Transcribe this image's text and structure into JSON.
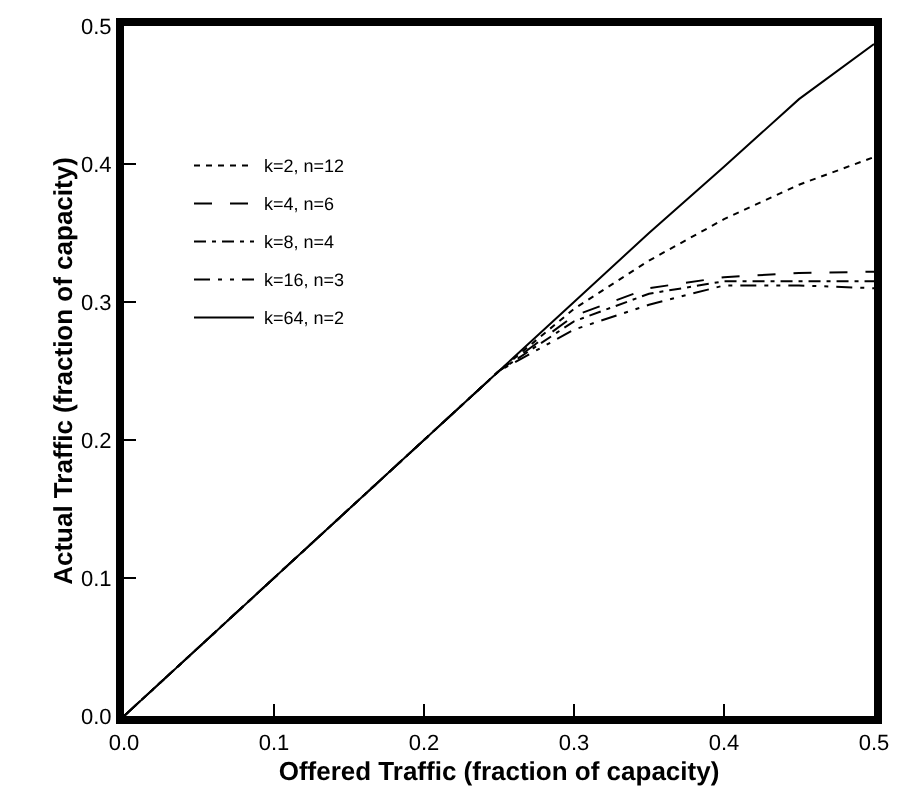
{
  "chart_data": {
    "type": "line",
    "xlabel": "Offered Traffic (fraction of capacity)",
    "ylabel": "Actual Traffic (fraction of capacity)",
    "x": [
      0,
      0.25,
      0.3,
      0.35,
      0.4,
      0.45,
      0.5
    ],
    "series": [
      {
        "name": "k=2, n=12",
        "color": "#000000",
        "line_style": "dotted",
        "values": [
          0,
          0.25,
          0.295,
          0.33,
          0.36,
          0.385,
          0.405
        ]
      },
      {
        "name": "k=4, n=6",
        "color": "#000000",
        "line_style": "dashed",
        "values": [
          0,
          0.25,
          0.29,
          0.31,
          0.318,
          0.321,
          0.322
        ]
      },
      {
        "name": "k=8, n=4",
        "color": "#000000",
        "line_style": "dashed",
        "values": [
          0,
          0.25,
          0.286,
          0.306,
          0.315,
          0.315,
          0.315
        ]
      },
      {
        "name": "k=16, n=3",
        "color": "#000000",
        "line_style": "dashed",
        "values": [
          0,
          0.25,
          0.28,
          0.298,
          0.312,
          0.312,
          0.31
        ]
      },
      {
        "name": "k=64, n=2",
        "color": "#000000",
        "line_style": "solid",
        "values": [
          0,
          0.25,
          0.3,
          0.35,
          0.398,
          0.447,
          0.487
        ]
      }
    ],
    "xlim": [
      0,
      0.5
    ],
    "ylim": [
      0,
      0.5
    ],
    "xticks": [
      {
        "value": 0,
        "label": "0.0"
      },
      0.1,
      0.2,
      0.3,
      0.4,
      0.5
    ],
    "yticks": [
      {
        "value": 0,
        "label": "0.0"
      },
      0.1,
      0.2,
      0.3,
      0.4,
      0.5
    ],
    "legend": "top left",
    "marker": "none"
  }
}
